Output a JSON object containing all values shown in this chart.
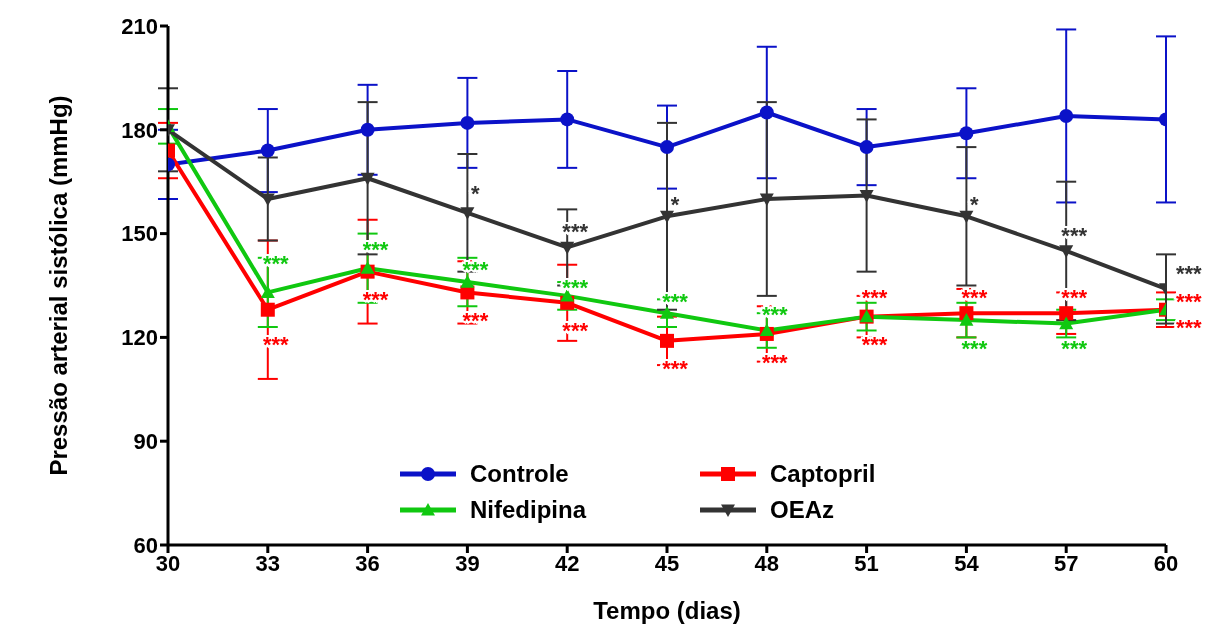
{
  "chart_data": {
    "type": "line",
    "xlabel": "Tempo (dias)",
    "ylabel": "Pressão arterial sistólica (mmHg)",
    "x": [
      30,
      33,
      36,
      39,
      42,
      45,
      48,
      51,
      54,
      57,
      60
    ],
    "xlim": [
      30,
      60
    ],
    "xticks": [
      30,
      33,
      36,
      39,
      42,
      45,
      48,
      51,
      54,
      57,
      60
    ],
    "ylim": [
      60,
      210
    ],
    "yticks": [
      60,
      90,
      120,
      150,
      180,
      210
    ],
    "grid": false,
    "legend": "bottom",
    "series": [
      {
        "name": "Controle",
        "color": "#0b12c8",
        "marker": "circle",
        "values": [
          170,
          174,
          180,
          182,
          183,
          175,
          185,
          175,
          179,
          184,
          183
        ],
        "errors": [
          10,
          12,
          13,
          13,
          14,
          12,
          19,
          11,
          13,
          25,
          24
        ]
      },
      {
        "name": "Captopril",
        "color": "#ff0000",
        "marker": "square",
        "values": [
          174,
          128,
          139,
          133,
          130,
          119,
          121,
          126,
          127,
          127,
          128
        ],
        "errors": [
          8,
          20,
          15,
          9,
          11,
          7,
          8,
          6,
          7,
          6,
          5
        ]
      },
      {
        "name": "Nifedipina",
        "color": "#10c810",
        "marker": "triangle",
        "values": [
          181,
          133,
          140,
          136,
          132,
          127,
          122,
          126,
          125,
          124,
          128
        ],
        "errors": [
          5,
          10,
          10,
          7,
          4,
          4,
          5,
          4,
          5,
          4,
          3
        ]
      },
      {
        "name": "OEAz",
        "color": "#333333",
        "marker": "triangle_down",
        "values": [
          180,
          160,
          166,
          156,
          146,
          155,
          160,
          161,
          155,
          145,
          134
        ],
        "errors": [
          12,
          12,
          22,
          17,
          11,
          27,
          28,
          22,
          20,
          20,
          10
        ]
      }
    ],
    "annotations": [
      {
        "text": "*",
        "x": 39,
        "y": 161
      },
      {
        "text": "***",
        "x": 42,
        "y": 150
      },
      {
        "text": "*",
        "x": 45,
        "y": 158
      },
      {
        "text": "*",
        "x": 54,
        "y": 158
      },
      {
        "text": "***",
        "x": 57,
        "y": 149
      },
      {
        "text": "***",
        "x": 60,
        "y": 138
      },
      {
        "text": "***",
        "x": 33,
        "y": 141
      },
      {
        "text": "***",
        "x": 36,
        "y": 145
      },
      {
        "text": "***",
        "x": 39,
        "y": 139
      },
      {
        "text": "***",
        "x": 42,
        "y": 134
      },
      {
        "text": "***",
        "x": 45,
        "y": 130
      },
      {
        "text": "***",
        "x": 48,
        "y": 126
      },
      {
        "text": "***",
        "x": 51,
        "y": 120
      },
      {
        "text": "***",
        "x": 54,
        "y": 119
      },
      {
        "text": "***",
        "x": 57,
        "y": 119
      },
      {
        "text": "***",
        "x": 60,
        "y": 125
      },
      {
        "text": "***",
        "x": 33,
        "y": 120
      },
      {
        "text": "***",
        "x": 36,
        "y": 133
      },
      {
        "text": "***",
        "x": 39,
        "y": 127
      },
      {
        "text": "***",
        "x": 42,
        "y": 124
      },
      {
        "text": "***",
        "x": 45,
        "y": 113
      },
      {
        "text": "***",
        "x": 48,
        "y": 115
      },
      {
        "text": "***",
        "x": 51,
        "y": 131
      },
      {
        "text": "***",
        "x": 54,
        "y": 131
      },
      {
        "text": "***",
        "x": 57,
        "y": 131
      },
      {
        "text": "***",
        "x": 60,
        "y": 130
      }
    ]
  }
}
